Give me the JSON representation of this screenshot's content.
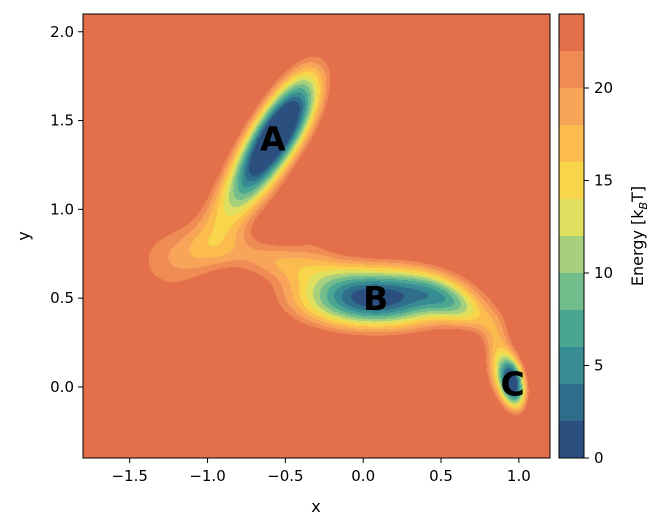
{
  "chart_data": {
    "type": "contour",
    "xlabel": "x",
    "ylabel": "y",
    "xlim": [
      -1.8,
      1.2
    ],
    "ylim": [
      -0.4,
      2.1
    ],
    "xticks": [
      -1.5,
      -1.0,
      -0.5,
      0.0,
      0.5,
      1.0
    ],
    "xtick_labels": [
      "−1.5",
      "−1.0",
      "−0.5",
      "0.0",
      "0.5",
      "1.0"
    ],
    "yticks": [
      0.0,
      0.5,
      1.0,
      1.5,
      2.0
    ],
    "ytick_labels": [
      "0.0",
      "0.5",
      "1.0",
      "1.5",
      "2.0"
    ],
    "levels": [
      0,
      2,
      4,
      6,
      8,
      10,
      12,
      14,
      16,
      18,
      20,
      22,
      24
    ],
    "colormap": [
      "#2b4f7e",
      "#2f6d8b",
      "#378c93",
      "#4aa693",
      "#72bd8b",
      "#a7d07e",
      "#dfe05f",
      "#f8d54a",
      "#fbbb4f",
      "#f8a55a",
      "#ef8c55",
      "#e3704a"
    ],
    "colorbar": {
      "label_prefix": "Energy [k",
      "label_sub": "B",
      "label_suffix": "T]",
      "ticks": [
        0,
        5,
        10,
        15,
        20
      ],
      "tick_labels": [
        "0",
        "5",
        "10",
        "15",
        "20"
      ],
      "range": [
        0,
        24
      ]
    },
    "minima": [
      {
        "label": "A",
        "x": -0.58,
        "y": 1.4
      },
      {
        "label": "B",
        "x": 0.08,
        "y": 0.5
      },
      {
        "label": "C",
        "x": 0.96,
        "y": 0.02
      }
    ]
  }
}
